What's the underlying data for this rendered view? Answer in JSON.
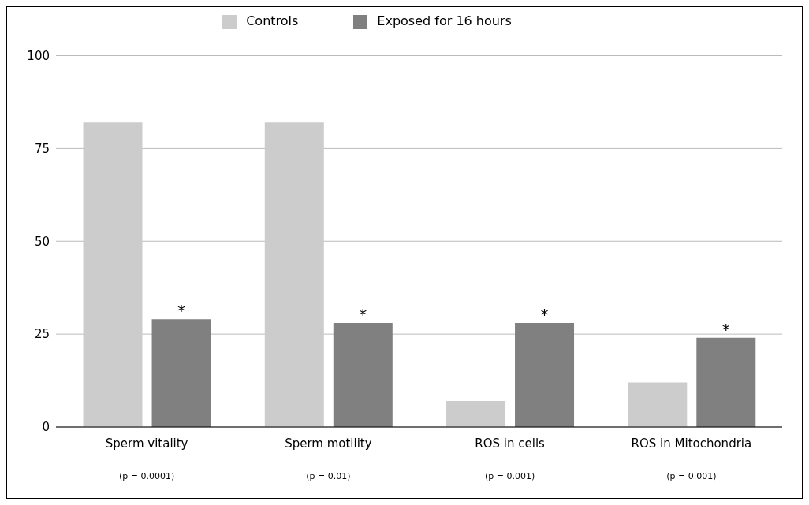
{
  "chart_data": {
    "type": "bar",
    "categories": [
      "Sperm vitality",
      "Sperm motility",
      "ROS in cells",
      "ROS in Mitochondria"
    ],
    "series": [
      {
        "name": "Controls",
        "color": "#cccccc",
        "values": [
          82,
          82,
          7,
          12
        ]
      },
      {
        "name": "Exposed for 16 hours",
        "color": "#808080",
        "values": [
          29,
          28,
          28,
          24
        ]
      }
    ],
    "ylim": [
      0,
      100
    ],
    "yticks": [
      0,
      25,
      50,
      75,
      100
    ],
    "grid": "y",
    "legend": "top",
    "annotations": [
      "*",
      "*",
      "*",
      "*",
      "(p = 0.0001)",
      "(p = 0.01)",
      "(p = 0.001)",
      "(p = 0.001)"
    ]
  }
}
